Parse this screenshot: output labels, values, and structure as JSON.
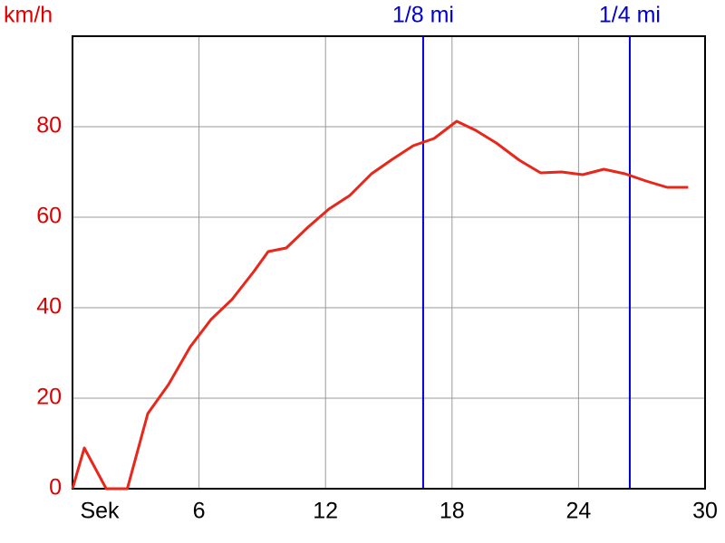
{
  "chart_data": {
    "type": "line",
    "y_label": "km/h",
    "x_label": "Sek",
    "x": [
      0,
      0.56,
      1.6,
      2.6,
      3.57,
      4.55,
      5.59,
      6.57,
      7.56,
      8.6,
      9.28,
      10.14,
      11.17,
      12.16,
      13.15,
      14.18,
      15.17,
      16.16,
      17.15,
      18.22,
      19.12,
      20.1,
      21.19,
      22.2,
      23.2,
      24.2,
      25.2,
      26.2,
      27.2,
      28.2,
      29.2
    ],
    "series": [
      {
        "name": "km/h",
        "color": "#e8261a",
        "values": [
          0,
          9,
          0,
          0,
          16.6,
          23,
          31.4,
          37.4,
          41.8,
          48,
          52.4,
          53.2,
          57.8,
          61.8,
          64.8,
          69.6,
          72.8,
          75.8,
          77.4,
          81.2,
          79.2,
          76.4,
          72.6,
          69.8,
          70,
          69.4,
          70.6,
          69.6,
          68,
          66.6,
          66.6
        ]
      }
    ],
    "xlim": [
      0,
      30
    ],
    "ylim": [
      0,
      100
    ],
    "xticks": [
      6,
      12,
      18,
      24,
      30
    ],
    "yticks": [
      0,
      20,
      40,
      60,
      80
    ],
    "grid": true,
    "annotations": [
      {
        "x": 16.63,
        "label": "1/8 mi",
        "color": "#0000d0"
      },
      {
        "x": 26.43,
        "label": "1/4 mi",
        "color": "#0000d0"
      }
    ]
  }
}
